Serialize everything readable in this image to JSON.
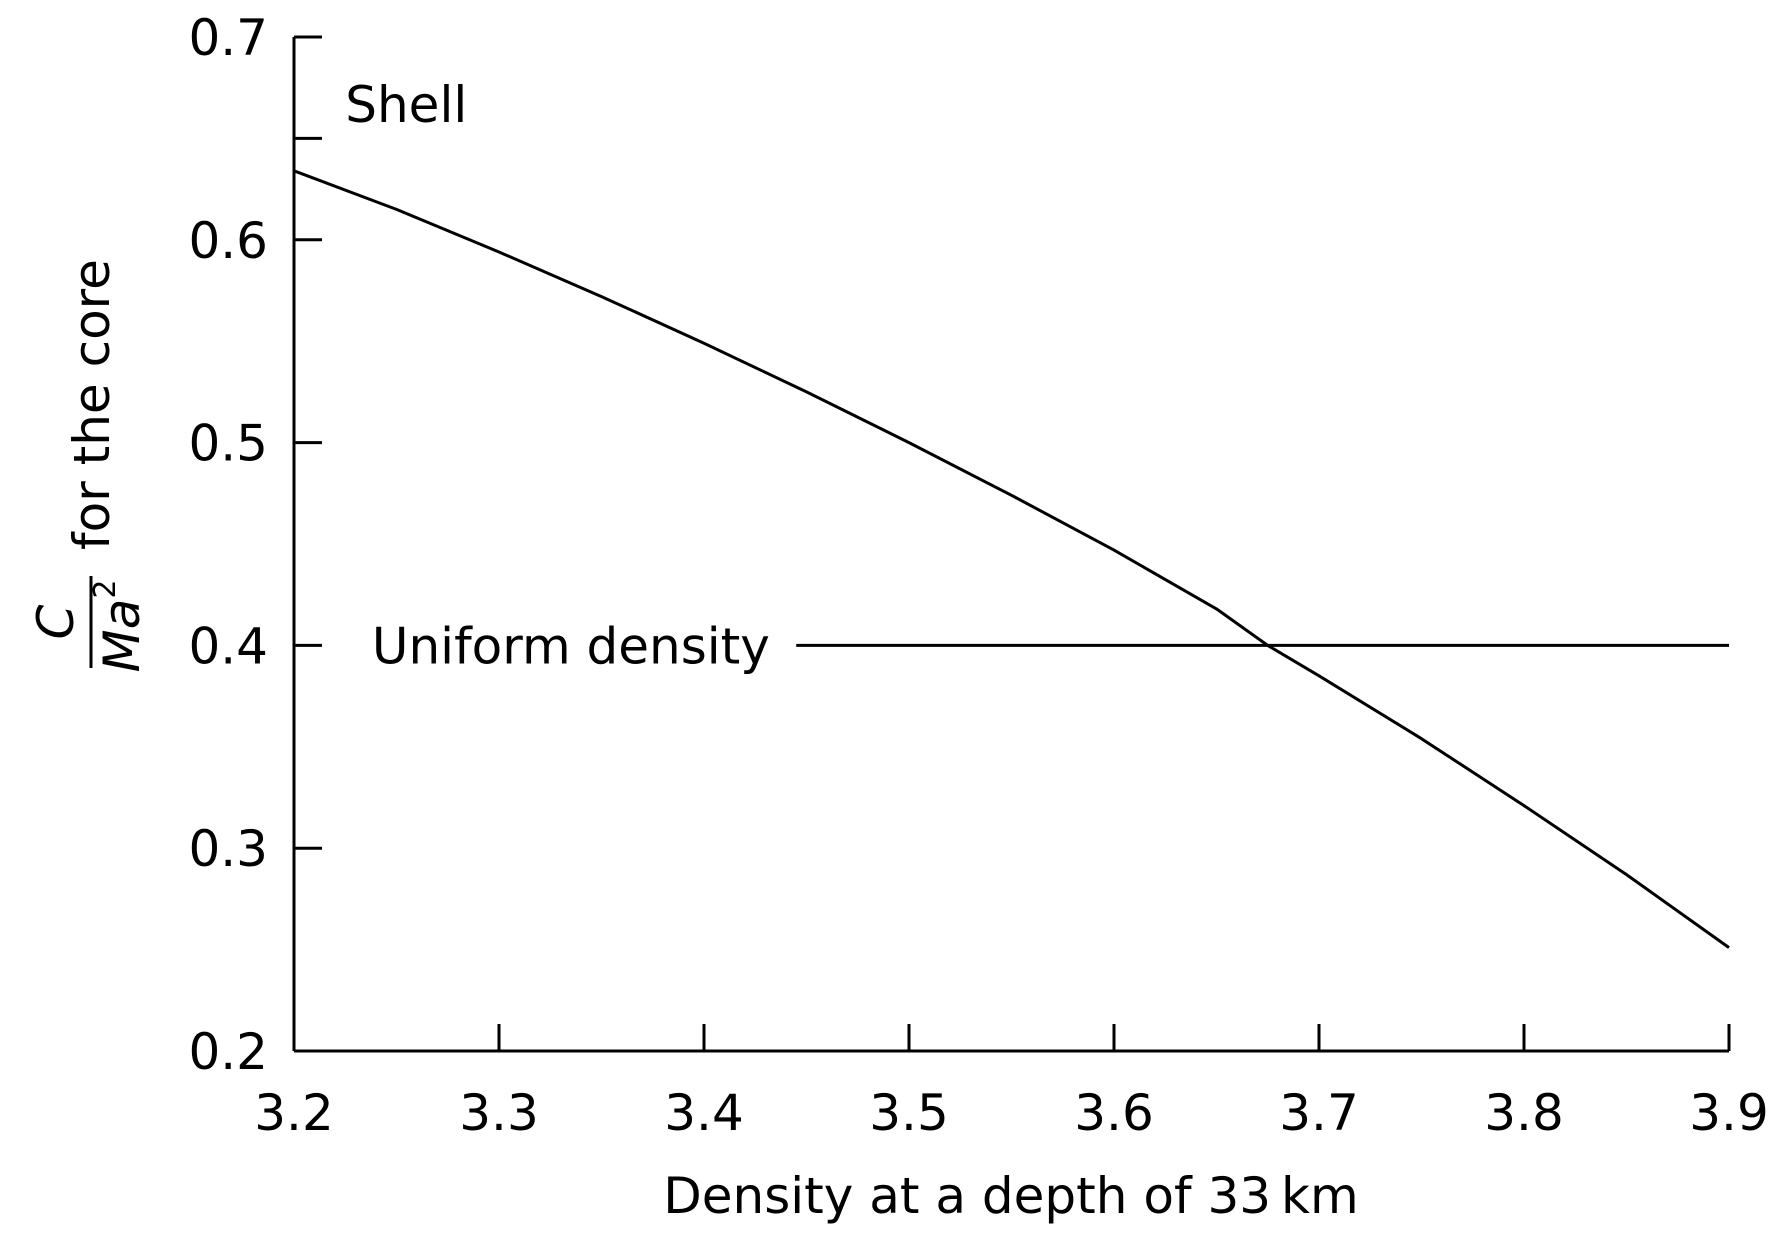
{
  "chart_data": {
    "type": "line",
    "xlabel": "Density at a depth of 33 km",
    "ylabel": {
      "numerator": "C",
      "denominator_base": "Ma",
      "denominator_sup": "2",
      "suffix": "for the core"
    },
    "xlim": [
      3.2,
      3.9
    ],
    "ylim": [
      0.2,
      0.7
    ],
    "x_ticks": [
      "3.2",
      "3.3",
      "3.4",
      "3.5",
      "3.6",
      "3.7",
      "3.8",
      "3.9"
    ],
    "y_ticks": [
      "0.2",
      "0.3",
      "0.4",
      "0.5",
      "0.6",
      "0.7"
    ],
    "grid": false,
    "series": [
      {
        "name": "Shell",
        "x": [
          3.2,
          3.25,
          3.3,
          3.35,
          3.4,
          3.45,
          3.5,
          3.55,
          3.6,
          3.65,
          3.675,
          3.7,
          3.75,
          3.8,
          3.85,
          3.9
        ],
        "y": [
          0.634,
          0.615,
          0.594,
          0.572,
          0.549,
          0.525,
          0.5,
          0.474,
          0.447,
          0.418,
          0.4,
          0.385,
          0.354,
          0.321,
          0.287,
          0.251
        ]
      },
      {
        "name": "Uniform density",
        "x": [
          3.445,
          3.9
        ],
        "y": [
          0.4,
          0.4
        ]
      }
    ],
    "annotations": [
      {
        "text": "Shell",
        "x": 3.225,
        "y": 0.667
      },
      {
        "text": "Uniform density",
        "x": 3.238,
        "y": 0.4
      }
    ]
  }
}
